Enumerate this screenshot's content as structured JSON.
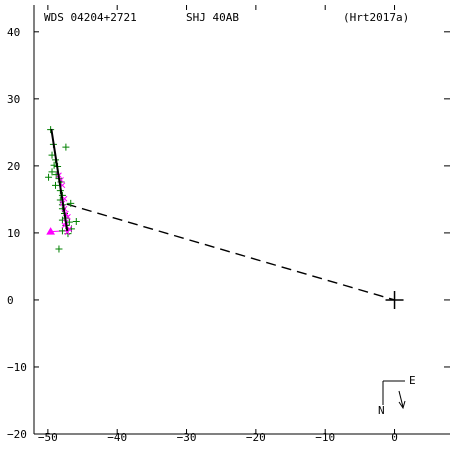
{
  "chart_data": {
    "type": "scatter",
    "header": {
      "left": "WDS 04204+2721",
      "center": "SHJ  40AB",
      "right": "(Hrt2017a)"
    },
    "xlim": [
      -52,
      8
    ],
    "ylim": [
      -20,
      44
    ],
    "x_ticks": [
      -50,
      -40,
      -30,
      -20,
      -10,
      0
    ],
    "x_tick_labels": [
      "−50",
      "−40",
      "−30",
      "−20",
      "−10",
      "0"
    ],
    "y_ticks": [
      -20,
      -10,
      0,
      10,
      20,
      30,
      40
    ],
    "y_tick_labels": [
      "−20",
      "−10",
      "0",
      "10",
      "20",
      "30",
      "40"
    ],
    "primary": {
      "x": 0,
      "y": 0
    },
    "orbit_track": [
      [
        -49.5,
        25.5
      ],
      [
        -48.3,
        17.5
      ],
      [
        -47.2,
        10.3
      ]
    ],
    "separation_line": [
      [
        -47.3,
        14.3
      ],
      [
        0,
        0
      ]
    ],
    "series": [
      {
        "color": "#008000",
        "marker": "plus",
        "points": [
          [
            -49.6,
            25.4
          ],
          [
            -49.2,
            23.2
          ],
          [
            -49.4,
            21.6
          ],
          [
            -48.9,
            20.9
          ],
          [
            -49.1,
            20.1
          ],
          [
            -48.6,
            19.9
          ],
          [
            -49.4,
            19.1
          ],
          [
            -48.8,
            18.7
          ],
          [
            -49.9,
            18.3
          ],
          [
            -48.4,
            18.1
          ],
          [
            -48.1,
            17.6
          ],
          [
            -48.9,
            17.1
          ],
          [
            -48.2,
            16.3
          ],
          [
            -47.9,
            15.6
          ],
          [
            -48.2,
            14.9
          ],
          [
            -47.9,
            14.2
          ],
          [
            -46.7,
            14.4
          ],
          [
            -47.9,
            13.6
          ],
          [
            -47.6,
            12.9
          ],
          [
            -47.4,
            12.2
          ],
          [
            -47.9,
            11.9
          ],
          [
            -46.9,
            11.6
          ],
          [
            -47.4,
            11.1
          ],
          [
            -46.6,
            10.6
          ],
          [
            -47.9,
            10.3
          ],
          [
            -45.9,
            11.7
          ],
          [
            -47.4,
            22.8
          ],
          [
            -48.4,
            7.6
          ],
          [
            -47.1,
            9.9
          ]
        ]
      },
      {
        "color": "#ff00ff",
        "marker": "x",
        "points": [
          [
            -48.4,
            18.6
          ],
          [
            -48.1,
            17.9
          ],
          [
            -47.9,
            17.1
          ],
          [
            -47.6,
            15.1
          ],
          [
            -47.9,
            14.4
          ],
          [
            -47.6,
            13.6
          ],
          [
            -47.4,
            12.9
          ],
          [
            -47.1,
            12.4
          ],
          [
            -47.4,
            11.6
          ],
          [
            -47.6,
            11.1
          ],
          [
            -46.9,
            10.6
          ],
          [
            -47.2,
            10.1
          ]
        ]
      },
      {
        "color": "#ff00ff",
        "marker": "triangle",
        "points": [
          [
            -49.6,
            10.2
          ]
        ]
      }
    ],
    "triangle_link": [
      [
        -49.6,
        10.2
      ],
      [
        -47.6,
        10.3
      ]
    ],
    "orientation": {
      "north_label": "N",
      "east_label": "E"
    }
  }
}
